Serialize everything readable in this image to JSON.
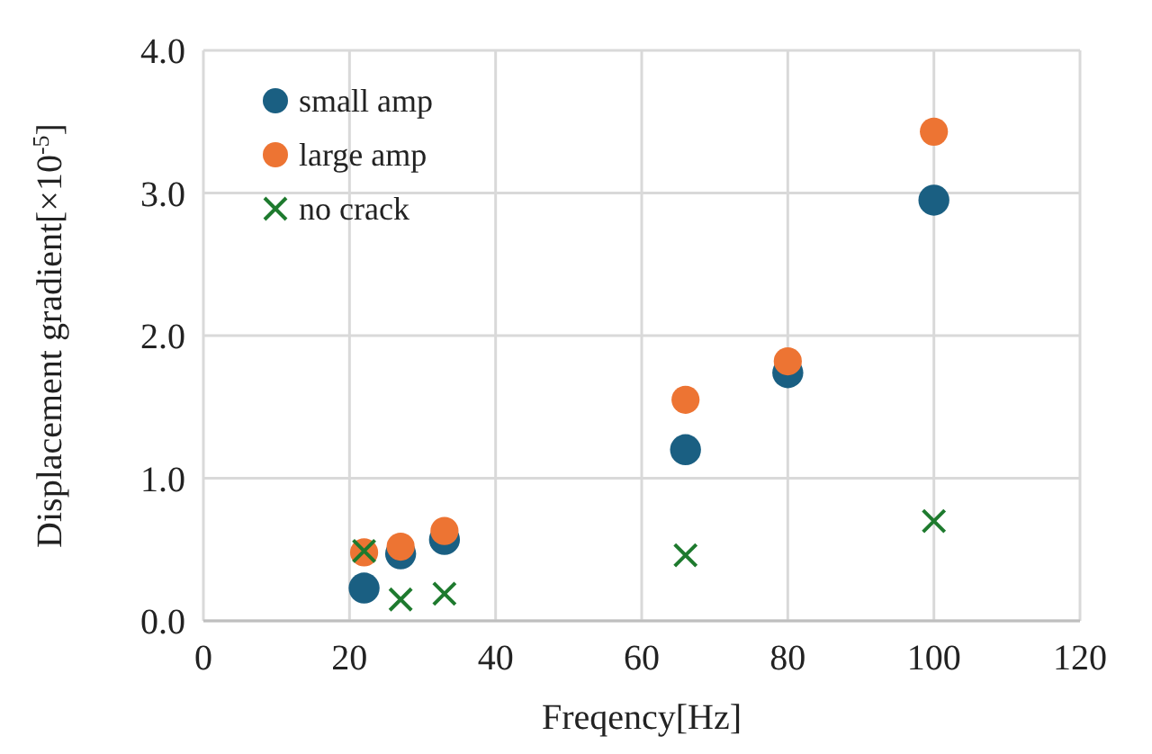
{
  "chart_data": {
    "type": "scatter",
    "xlabel": "Freqency[Hz]",
    "ylabel": "Displacement gradient[×10$^{-5}$]",
    "xlim": [
      0,
      120
    ],
    "xticks": [
      0,
      20,
      40,
      60,
      80,
      100,
      120
    ],
    "ylim": [
      0,
      4
    ],
    "yticks": [
      {
        "value": 0,
        "label": "0.0"
      },
      {
        "value": 1,
        "label": "1.0"
      },
      {
        "value": 2,
        "label": "2.0"
      },
      {
        "value": 3,
        "label": "3.0"
      },
      {
        "value": 4,
        "label": "4.0"
      }
    ],
    "grid": true,
    "legend": "top left",
    "series": [
      {
        "name": "small amp",
        "color": "#1a5f82",
        "marker": "circle",
        "x": [
          22,
          27,
          33,
          66,
          80,
          100
        ],
        "values": [
          0.23,
          0.47,
          0.57,
          1.2,
          1.74,
          2.95
        ]
      },
      {
        "name": "large amp",
        "color": "#ed7433",
        "marker": "circle",
        "x": [
          22,
          27,
          33,
          66,
          80,
          100
        ],
        "values": [
          0.48,
          0.52,
          0.63,
          1.55,
          1.82,
          3.43
        ]
      },
      {
        "name": "no crack",
        "color": "#1e7a2e",
        "marker": "cross",
        "x": [
          22,
          27,
          33,
          66,
          100
        ],
        "values": [
          0.49,
          0.15,
          0.19,
          0.46,
          0.7
        ]
      }
    ]
  }
}
